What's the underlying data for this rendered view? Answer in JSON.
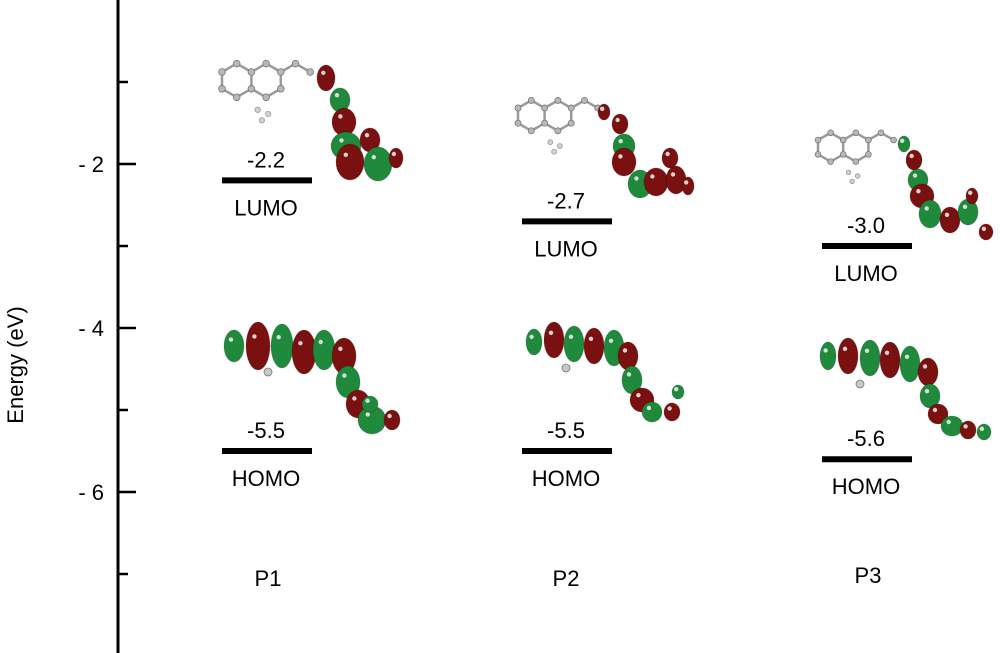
{
  "chart_data": {
    "type": "energy-level-diagram",
    "ylabel": "Energy (eV)",
    "ylim": [
      -8.0,
      0.2
    ],
    "yticks": [
      {
        "value": -2,
        "label": "- 2"
      },
      {
        "value": -4,
        "label": "- 4"
      },
      {
        "value": -6,
        "label": "- 6"
      }
    ],
    "minor_ticks": [
      -1,
      -3,
      -5,
      -7
    ],
    "compounds": [
      {
        "name": "P1",
        "lumo": -2.2,
        "lumo_label": "-2.2",
        "homo": -5.5,
        "homo_label": "-5.5",
        "lumo_text": "LUMO",
        "homo_text": "HOMO"
      },
      {
        "name": "P2",
        "lumo": -2.7,
        "lumo_label": "-2.7",
        "homo": -5.5,
        "homo_label": "-5.5",
        "lumo_text": "LUMO",
        "homo_text": "HOMO"
      },
      {
        "name": "P3",
        "lumo": -3.0,
        "lumo_label": "-3.0",
        "homo": -5.6,
        "homo_label": "-5.6",
        "lumo_text": "LUMO",
        "homo_text": "HOMO"
      }
    ],
    "colors": {
      "orbital_positive": "#1f8a3c",
      "orbital_negative": "#7a1010",
      "atom": "#9a9a9a",
      "line": "#000000"
    }
  }
}
